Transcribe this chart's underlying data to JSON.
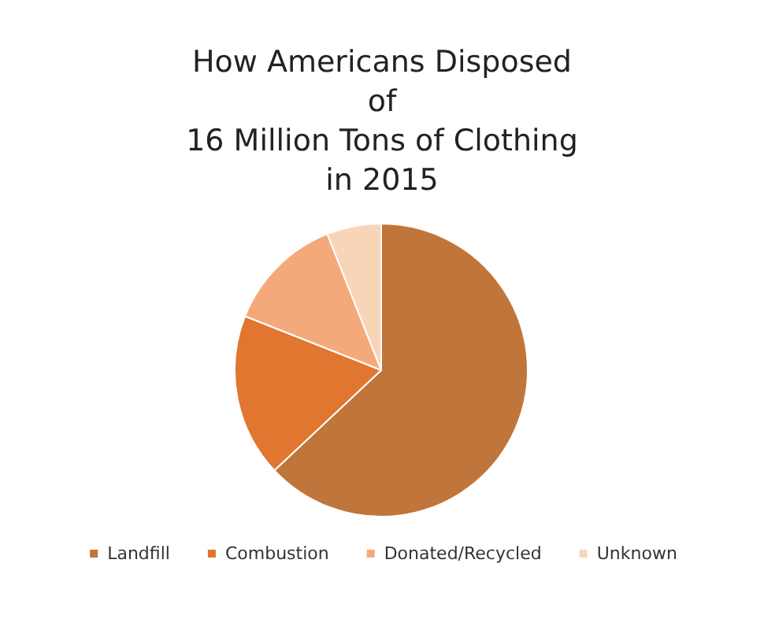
{
  "chart_data": {
    "type": "pie",
    "title": "How Americans Disposed\nof\n16 Million Tons of Clothing\nin 2015",
    "categories": [
      "Landfill",
      "Combustion",
      "Donated/Recycled",
      "Unknown"
    ],
    "values": [
      63,
      18,
      13,
      6
    ],
    "colors": [
      "#c0753a",
      "#e0762f",
      "#f4a97a",
      "#f9d5b8"
    ],
    "legend": "bottom"
  }
}
